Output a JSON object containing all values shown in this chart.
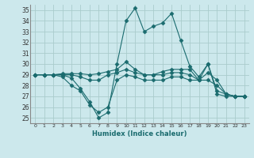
{
  "xlabel": "Humidex (Indice chaleur)",
  "bg_color": "#cce8ec",
  "grid_color": "#aacccc",
  "line_color": "#1a6b6e",
  "xlim": [
    -0.5,
    23.5
  ],
  "ylim": [
    24.5,
    35.5
  ],
  "yticks": [
    25,
    26,
    27,
    28,
    29,
    30,
    31,
    32,
    33,
    34,
    35
  ],
  "xticks": [
    0,
    1,
    2,
    3,
    4,
    5,
    6,
    7,
    8,
    9,
    10,
    11,
    12,
    13,
    14,
    15,
    16,
    17,
    18,
    19,
    20,
    21,
    22,
    23
  ],
  "lines": [
    {
      "x": [
        0,
        1,
        2,
        3,
        4,
        5,
        6,
        7,
        8,
        9,
        10,
        11,
        12,
        13,
        14,
        15,
        16,
        17,
        18,
        19,
        20,
        21,
        22,
        23
      ],
      "y": [
        29.0,
        29.0,
        29.0,
        29.0,
        28.7,
        27.7,
        26.5,
        25.0,
        25.5,
        30.0,
        34.0,
        35.2,
        33.0,
        33.5,
        33.8,
        34.7,
        32.2,
        29.8,
        28.8,
        30.0,
        27.5,
        27.2,
        27.0,
        27.0
      ],
      "marker": "D",
      "markersize": 2.5
    },
    {
      "x": [
        0,
        1,
        2,
        3,
        4,
        5,
        6,
        7,
        8,
        9,
        10,
        11,
        12,
        13,
        14,
        15,
        16,
        17,
        18,
        19,
        20,
        21,
        22,
        23
      ],
      "y": [
        29.0,
        29.0,
        29.0,
        29.1,
        29.1,
        29.1,
        29.0,
        29.1,
        29.3,
        29.5,
        30.2,
        29.5,
        29.0,
        29.0,
        29.3,
        29.5,
        29.5,
        29.5,
        28.5,
        30.0,
        27.2,
        27.0,
        27.0,
        27.0
      ],
      "marker": "D",
      "markersize": 2.5
    },
    {
      "x": [
        0,
        1,
        2,
        3,
        4,
        5,
        6,
        7,
        8,
        9,
        10,
        11,
        12,
        13,
        14,
        15,
        16,
        17,
        18,
        19,
        20,
        21,
        22,
        23
      ],
      "y": [
        29.0,
        29.0,
        29.0,
        29.0,
        29.0,
        28.8,
        28.5,
        28.5,
        29.0,
        29.2,
        29.5,
        29.2,
        29.0,
        29.0,
        29.0,
        29.2,
        29.2,
        29.0,
        28.5,
        29.2,
        28.5,
        27.2,
        27.0,
        27.0
      ],
      "marker": "D",
      "markersize": 2.5
    },
    {
      "x": [
        0,
        1,
        2,
        3,
        4,
        5,
        6,
        7,
        8,
        9,
        10,
        11,
        12,
        13,
        14,
        15,
        16,
        17,
        18,
        19,
        20,
        21,
        22,
        23
      ],
      "y": [
        29.0,
        29.0,
        29.0,
        28.8,
        28.0,
        27.5,
        26.2,
        25.5,
        26.0,
        28.5,
        29.0,
        28.8,
        28.5,
        28.5,
        28.5,
        28.8,
        28.8,
        28.5,
        28.5,
        28.5,
        28.0,
        27.2,
        27.0,
        27.0
      ],
      "marker": "D",
      "markersize": 2.5
    }
  ]
}
